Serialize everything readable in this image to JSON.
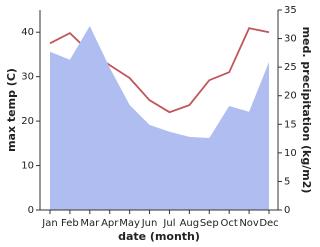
{
  "chart_data": {
    "type": "line-area",
    "categories": [
      "Jan",
      "Feb",
      "Mar",
      "Apr",
      "May",
      "Jun",
      "Jul",
      "Aug",
      "Sep",
      "Oct",
      "Nov",
      "Dec"
    ],
    "xlabel": "date (month)",
    "ylabel": "max temp (C)",
    "y2label": "med. precipitation (kg/m2)",
    "ylim": [
      0,
      45
    ],
    "yticks": [
      0,
      10,
      20,
      30,
      40
    ],
    "y2lim": [
      0,
      35
    ],
    "y2ticks": [
      0,
      5,
      10,
      15,
      20,
      25,
      30,
      35
    ],
    "series": [
      {
        "name": "max temp",
        "color": "#c1565c",
        "axis": "y",
        "kind": "line",
        "values": [
          37.5,
          39.8,
          35.5,
          32.6,
          29.7,
          24.7,
          22,
          23.6,
          29.2,
          31,
          40.9,
          40
        ]
      },
      {
        "name": "med. precipitation",
        "color": "#b0bdf0",
        "axis": "y2",
        "kind": "area",
        "values": [
          27.7,
          26.3,
          32.2,
          24.9,
          18.4,
          14.9,
          13.7,
          12.8,
          12.6,
          18.2,
          17.2,
          25.9
        ]
      }
    ]
  }
}
